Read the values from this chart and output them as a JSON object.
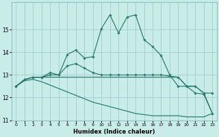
{
  "xlabel": "Humidex (Indice chaleur)",
  "bg_color": "#c8ece8",
  "line_color": "#2e7d70",
  "grid_color": "#a0cccc",
  "xlim": [
    -0.5,
    23.5
  ],
  "ylim": [
    11,
    16.2
  ],
  "yticks": [
    11,
    12,
    13,
    14,
    15
  ],
  "xticks": [
    0,
    1,
    2,
    3,
    4,
    5,
    6,
    7,
    8,
    9,
    10,
    11,
    12,
    13,
    14,
    15,
    16,
    17,
    18,
    19,
    20,
    21,
    22,
    23
  ],
  "line1_x": [
    0,
    1,
    2,
    3,
    4,
    5,
    6,
    7,
    8,
    9,
    10,
    11,
    12,
    13,
    14,
    15,
    16,
    17,
    18,
    19,
    20,
    21,
    22,
    23
  ],
  "line1_y": [
    12.5,
    12.8,
    12.9,
    12.9,
    13.1,
    13.0,
    13.9,
    14.1,
    13.75,
    13.8,
    15.05,
    15.65,
    14.85,
    15.55,
    15.65,
    14.55,
    14.25,
    13.85,
    13.0,
    12.5,
    12.5,
    12.2,
    12.15,
    11.3
  ],
  "line2_x": [
    0,
    1,
    2,
    3,
    4,
    5,
    6,
    7,
    8,
    9,
    10,
    11,
    12,
    13,
    14,
    15,
    16,
    17,
    18,
    19,
    20,
    21,
    22,
    23
  ],
  "line2_y": [
    12.5,
    12.8,
    12.9,
    12.9,
    13.0,
    13.0,
    13.4,
    13.5,
    13.3,
    13.1,
    13.0,
    13.0,
    13.0,
    13.0,
    13.0,
    13.0,
    13.0,
    13.0,
    12.95,
    12.9,
    12.5,
    12.5,
    12.2,
    12.2
  ],
  "line3_x": [
    0,
    1,
    2,
    3,
    4,
    5,
    6,
    7,
    8,
    9,
    10,
    11,
    12,
    13,
    14,
    15,
    16,
    17,
    18,
    19,
    20,
    21,
    22,
    23
  ],
  "line3_y": [
    12.5,
    12.8,
    12.9,
    12.9,
    12.9,
    12.9,
    12.9,
    12.9,
    12.9,
    12.9,
    12.9,
    12.9,
    12.9,
    12.9,
    12.9,
    12.9,
    12.9,
    12.9,
    12.9,
    12.9,
    12.5,
    12.5,
    12.2,
    11.3
  ],
  "line4_x": [
    0,
    1,
    2,
    3,
    4,
    5,
    6,
    7,
    8,
    9,
    10,
    11,
    12,
    13,
    14,
    15,
    16,
    17,
    18,
    19,
    20,
    21,
    22,
    23
  ],
  "line4_y": [
    12.5,
    12.75,
    12.8,
    12.7,
    12.55,
    12.4,
    12.25,
    12.1,
    11.95,
    11.8,
    11.7,
    11.6,
    11.5,
    11.4,
    11.3,
    11.25,
    11.2,
    11.2,
    11.2,
    11.2,
    11.15,
    11.15,
    11.15,
    11.3
  ]
}
